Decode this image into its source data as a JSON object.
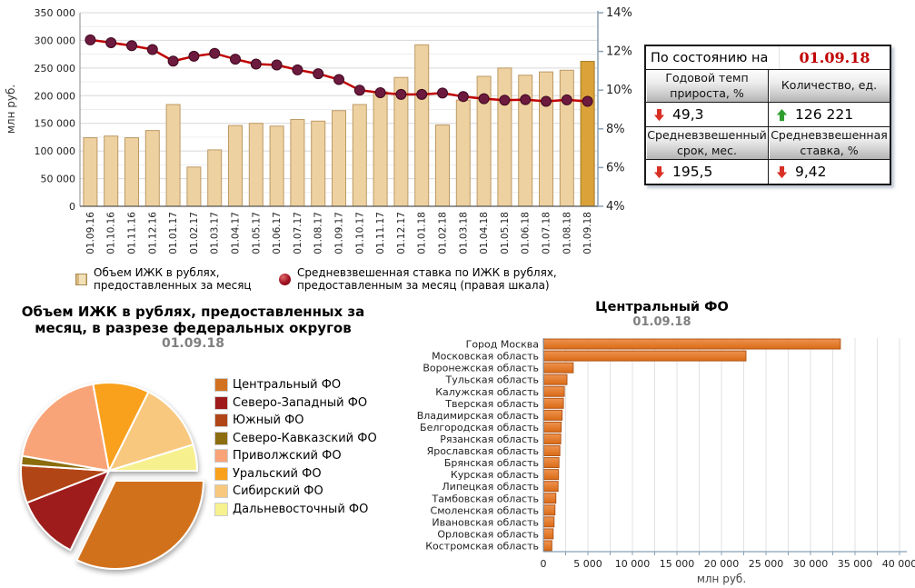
{
  "info_panel": {
    "title": "По состоянию на",
    "date": "01.09.18",
    "date_color": "#c00000",
    "trend_colors": {
      "down": "#d93025",
      "up": "#2f9e2f"
    },
    "metrics": [
      {
        "header": "Годовой темп прироста, %",
        "value": "49,3",
        "trend": "down"
      },
      {
        "header": "Количество, ед.",
        "value": "126 221",
        "trend": "up"
      },
      {
        "header": "Средневзвешенный срок, мес.",
        "value": "195,5",
        "trend": "down"
      },
      {
        "header": "Средневзвешенная ставка, %",
        "value": "9,42",
        "trend": "down"
      }
    ]
  },
  "chart_data": [
    {
      "type": "bar+line",
      "ylabel_left": "млн руб.",
      "ylim_left": [
        0,
        350000
      ],
      "left_tick_labels": [
        "0",
        "50 000",
        "100 000",
        "150 000",
        "200 000",
        "250 000",
        "300 000",
        "350 000"
      ],
      "ylim_right": [
        4,
        14
      ],
      "right_tick_labels": [
        "4%",
        "6%",
        "8%",
        "10%",
        "12%",
        "14%"
      ],
      "grid": true,
      "legend_position": "bottom",
      "categories": [
        "01.09.16",
        "01.10.16",
        "01.11.16",
        "01.12.16",
        "01.01.17",
        "01.02.17",
        "01.03.17",
        "01.04.17",
        "01.05.17",
        "01.06.17",
        "01.07.17",
        "01.08.17",
        "01.09.17",
        "01.10.17",
        "01.11.17",
        "01.12.17",
        "01.01.18",
        "01.02.18",
        "01.03.18",
        "01.04.18",
        "01.05.18",
        "01.06.18",
        "01.07.18",
        "01.08.18",
        "01.09.18"
      ],
      "series": [
        {
          "name": "Объем ИЖК в рублях, предоставленных за месяц",
          "type": "bar",
          "axis": "left",
          "values": [
            124000,
            127000,
            124000,
            137000,
            184000,
            71000,
            102000,
            146000,
            150000,
            145000,
            157000,
            154000,
            173000,
            184000,
            207000,
            233000,
            292000,
            147000,
            192000,
            235000,
            250000,
            237000,
            243000,
            246000,
            262000
          ],
          "color": "#eed1a0",
          "border_color": "#bd9965",
          "highlight_last": true,
          "highlight_color": "#dba23a",
          "highlight_border_color": "#a47b24"
        },
        {
          "name": "Средневзвешенная ставка по ИЖК  в рублях, предоставленным за месяц (правая шкала)",
          "type": "line",
          "axis": "right",
          "values": [
            12.6,
            12.45,
            12.3,
            12.1,
            11.5,
            11.75,
            11.9,
            11.6,
            11.35,
            11.3,
            11.05,
            10.85,
            10.55,
            10.0,
            9.87,
            9.78,
            9.78,
            9.85,
            9.67,
            9.56,
            9.48,
            9.51,
            9.42,
            9.5,
            9.42
          ],
          "color": "#c00000",
          "marker_color": "#6d1a3f",
          "marker_border_color": "#40091f"
        }
      ]
    },
    {
      "type": "pie",
      "title": "Объем ИЖК в рублях, предоставленных за месяц, в разрезе федеральных округов",
      "subtitle": "01.09.18",
      "labels": [
        "Центральный ФО",
        "Северо-Западный ФО",
        "Южный ФО",
        "Северо-Кавказский ФО",
        "Приволжский ФО",
        "Уральский ФО",
        "Сибирский ФО",
        "Дальневосточный ФО"
      ],
      "values_percent": [
        32.2,
        11.9,
        6.9,
        1.7,
        19.4,
        10.3,
        12.8,
        4.8
      ],
      "colors": [
        "#d2711f",
        "#9e1b1b",
        "#b24517",
        "#8c6d10",
        "#f9a478",
        "#f9a11b",
        "#f7c87e",
        "#f7f08f"
      ],
      "exploded_slice": "Центральный ФО",
      "start_angle_cw_from_12": 90,
      "legend_position": "right"
    },
    {
      "type": "bar",
      "orientation": "horizontal",
      "title": "Центральный ФО",
      "subtitle": "01.09.18",
      "xlabel": "млн руб.",
      "xlim": [
        0,
        40000
      ],
      "x_tick_labels": [
        "0",
        "5 000",
        "10 000",
        "15 000",
        "20 000",
        "25 000",
        "30 000",
        "35 000",
        "40 000"
      ],
      "grid": true,
      "categories": [
        "Город Москва",
        "Московская область",
        "Воронежская область",
        "Тульская область",
        "Калужская область",
        "Тверская область",
        "Владимирская область",
        "Белгородская область",
        "Рязанская область",
        "Ярославская область",
        "Брянская область",
        "Курская область",
        "Липецкая область",
        "Тамбовская область",
        "Смоленская область",
        "Ивановская область",
        "Орловская область",
        "Костромская область"
      ],
      "values": [
        33300,
        22700,
        3300,
        2600,
        2300,
        2200,
        2050,
        1950,
        1900,
        1800,
        1700,
        1650,
        1600,
        1350,
        1250,
        1150,
        1050,
        900
      ],
      "bar_color_top": "#ef9350",
      "bar_color_bottom": "#d96a15",
      "bar_border_color": "#b2561a"
    }
  ]
}
